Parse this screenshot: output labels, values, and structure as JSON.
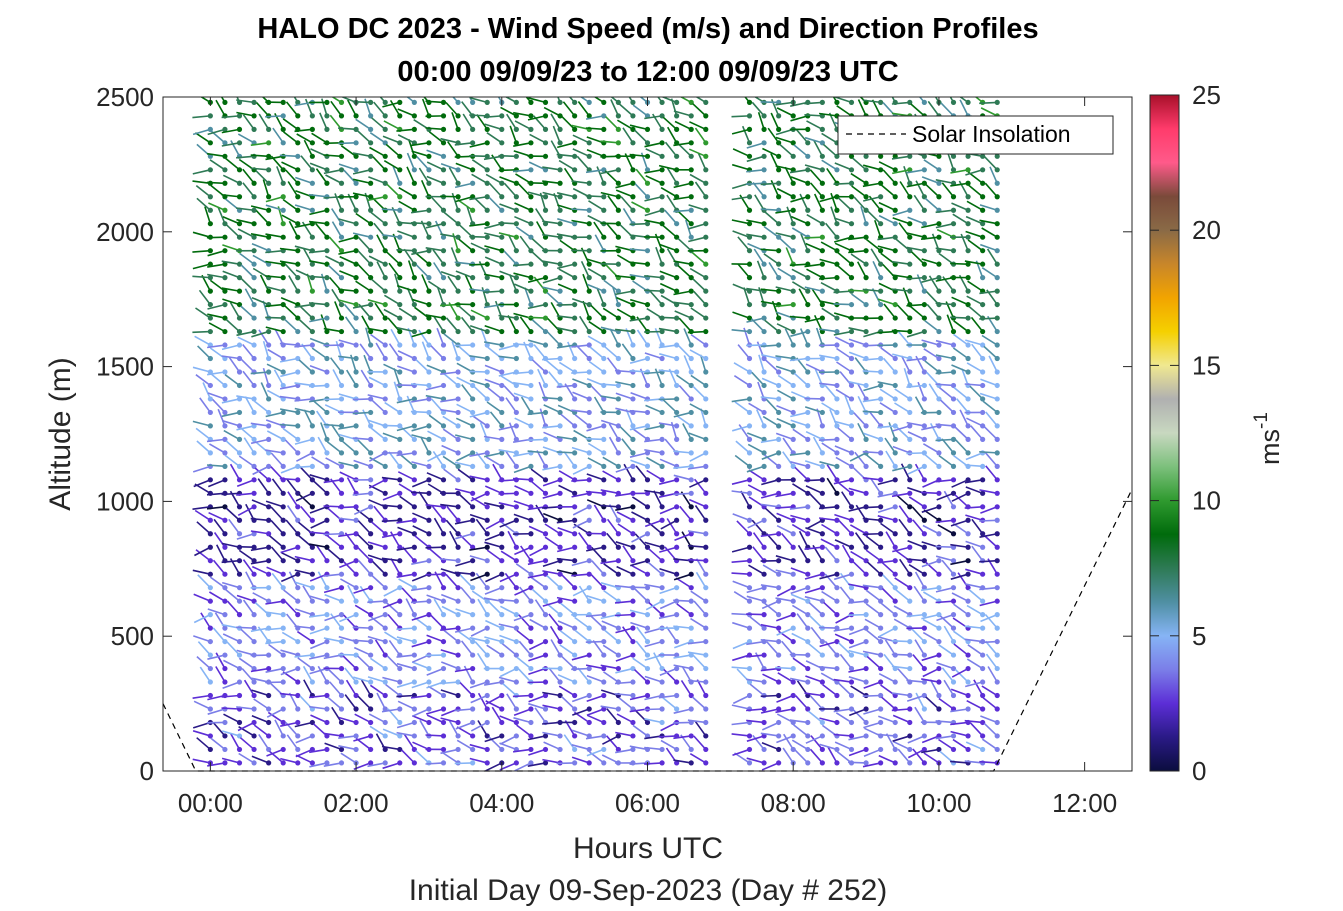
{
  "chart_data": {
    "type": "wind-barb-profile",
    "title_line1": "HALO DC 2023 - Wind Speed (m/s) and Direction Profiles",
    "title_line2": "00:00 09/09/23 to 12:00 09/09/23  UTC",
    "xlabel": "Hours UTC",
    "xlabel2": "Initial Day 09-Sep-2023 (Day # 252)",
    "ylabel": "Altitude (m)",
    "xlim_hours": [
      -0.65,
      12.65
    ],
    "ylim": [
      0,
      2500
    ],
    "xticks": [
      {
        "value": 0,
        "label": "00:00"
      },
      {
        "value": 2,
        "label": "02:00"
      },
      {
        "value": 4,
        "label": "04:00"
      },
      {
        "value": 6,
        "label": "06:00"
      },
      {
        "value": 8,
        "label": "08:00"
      },
      {
        "value": 10,
        "label": "10:00"
      },
      {
        "value": 12,
        "label": "12:00"
      }
    ],
    "yticks": [
      {
        "value": 0,
        "label": "0"
      },
      {
        "value": 500,
        "label": "500"
      },
      {
        "value": 1000,
        "label": "1000"
      },
      {
        "value": 1500,
        "label": "1500"
      },
      {
        "value": 2000,
        "label": "2000"
      },
      {
        "value": 2500,
        "label": "2500"
      }
    ],
    "legend": {
      "label": "Solar Insolation",
      "style": "dashed",
      "location": "top-right"
    },
    "solar_insolation": {
      "x": [
        -0.65,
        -0.2,
        10.75,
        12.65
      ],
      "y": [
        250,
        0,
        0,
        1045
      ]
    },
    "colorbar": {
      "label": "ms",
      "label_superscript": "-1",
      "range": [
        0,
        25
      ],
      "ticks": [
        {
          "value": 0,
          "label": "0"
        },
        {
          "value": 5,
          "label": "5"
        },
        {
          "value": 10,
          "label": "10"
        },
        {
          "value": 15,
          "label": "15"
        },
        {
          "value": 20,
          "label": "20"
        },
        {
          "value": 25,
          "label": "25"
        }
      ],
      "colors": [
        "#0b0d3e",
        "#2a1a86",
        "#5c2ed6",
        "#7b7ee8",
        "#86b4f5",
        "#4f8fa3",
        "#2e7a55",
        "#006b0c",
        "#2f9a2f",
        "#7cc07c",
        "#c8d8c0",
        "#b0b0b0",
        "#f0e890",
        "#f5d000",
        "#f2a400",
        "#c8862a",
        "#8a6a46",
        "#7a4a3a",
        "#ff5a8a",
        "#ff3b6b",
        "#a8102a"
      ]
    },
    "profiles": {
      "time_range_hours": [
        0,
        10.8
      ],
      "time_step_hours": 0.2,
      "altitude_range_m": [
        30,
        2500
      ],
      "altitude_step_m": 50,
      "data_gaps_hours": [
        [
          2.0,
          2.1
        ],
        [
          6.85,
          7.3
        ]
      ],
      "layers": [
        {
          "from_m": 0,
          "to_m": 300,
          "speed_mps": 3,
          "direction": "variable"
        },
        {
          "from_m": 300,
          "to_m": 700,
          "speed_mps": 4,
          "direction": "variable"
        },
        {
          "from_m": 700,
          "to_m": 1100,
          "speed_mps": 2,
          "direction": "variable"
        },
        {
          "from_m": 1100,
          "to_m": 1600,
          "speed_mps": 5,
          "direction": "variable"
        },
        {
          "from_m": 1600,
          "to_m": 2500,
          "speed_mps": 8,
          "direction": "variable"
        }
      ]
    }
  }
}
